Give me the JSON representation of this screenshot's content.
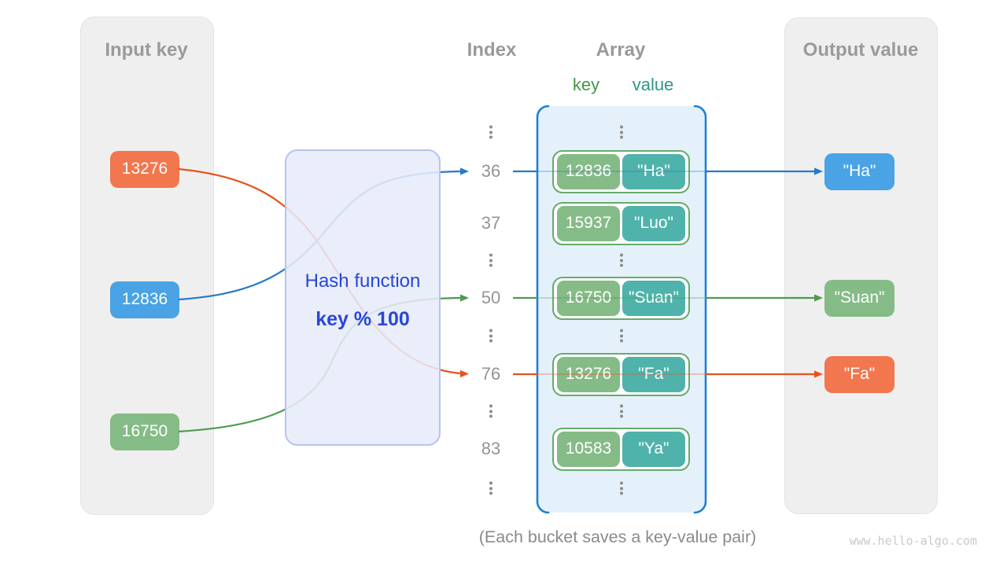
{
  "headers": {
    "input": "Input key",
    "index": "Index",
    "array": "Array",
    "output": "Output value",
    "key": "key",
    "value": "value"
  },
  "hash_function": {
    "name": "Hash function",
    "formula": "key % 100"
  },
  "caption": "(Each bucket saves a key-value pair)",
  "watermark": "www.hello-algo.com",
  "input_keys": [
    {
      "label": "13276",
      "color": "orange"
    },
    {
      "label": "12836",
      "color": "blue"
    },
    {
      "label": "16750",
      "color": "green"
    }
  ],
  "rows": [
    {
      "type": "dots"
    },
    {
      "type": "bucket",
      "index": "36",
      "key": "12836",
      "value": "\"Ha\"",
      "output": "\"Ha\"",
      "link_color": "blue"
    },
    {
      "type": "bucket",
      "index": "37",
      "key": "15937",
      "value": "\"Luo\""
    },
    {
      "type": "dots"
    },
    {
      "type": "bucket",
      "index": "50",
      "key": "16750",
      "value": "\"Suan\"",
      "output": "\"Suan\"",
      "link_color": "green"
    },
    {
      "type": "dots"
    },
    {
      "type": "bucket",
      "index": "76",
      "key": "13276",
      "value": "\"Fa\"",
      "output": "\"Fa\"",
      "link_color": "orange"
    },
    {
      "type": "dots"
    },
    {
      "type": "bucket",
      "index": "83",
      "key": "10583",
      "value": "\"Ya\""
    },
    {
      "type": "dots"
    }
  ],
  "colors": {
    "orange": "#F2764E",
    "blue": "#49A3E4",
    "green": "#85BB87",
    "teal": "#4FB3AB",
    "orange_line": "#E8521B",
    "blue_line": "#2679C4",
    "green_line": "#4E9B51",
    "bucket_border": "#67AB6A",
    "array_fill": "#E4F1FB",
    "array_border": "#1E80D6",
    "hash_text": "#2847D8",
    "panel_fill": "#EFEFEF",
    "gray_text": "#9A9A9A",
    "key_header": "#3F9A48",
    "value_header": "#2E968C"
  }
}
